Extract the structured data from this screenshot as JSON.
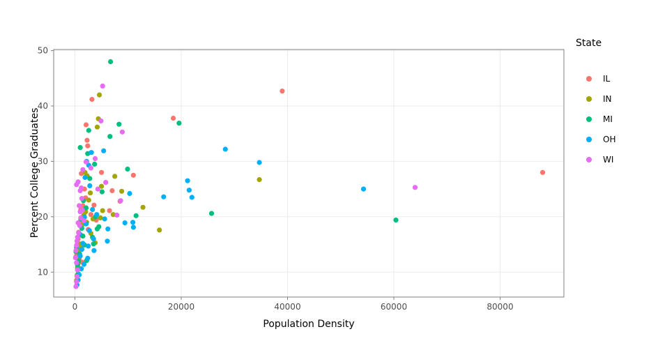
{
  "chart_data": {
    "type": "scatter",
    "title": "",
    "xlabel": "Population Density",
    "ylabel": "Percent College Graduates",
    "xlim": [
      -4000,
      92000
    ],
    "ylim": [
      5.5,
      50.2
    ],
    "x_ticks": [
      0,
      20000,
      40000,
      60000,
      80000
    ],
    "x_tick_labels": [
      "0",
      "20000",
      "40000",
      "60000",
      "80000"
    ],
    "y_ticks": [
      10,
      20,
      30,
      40,
      50
    ],
    "y_tick_labels": [
      "10",
      "20",
      "30",
      "40",
      "50"
    ],
    "grid": true,
    "legend": {
      "title": "State",
      "placement": "right"
    },
    "series": [
      {
        "name": "IL",
        "color": "#F8766D",
        "points": [
          [
            88000,
            28.0
          ],
          [
            39000,
            42.7
          ],
          [
            18500,
            37.8
          ],
          [
            11000,
            27.5
          ],
          [
            8500,
            22.8
          ],
          [
            7000,
            24.7
          ],
          [
            6500,
            21.1
          ],
          [
            5000,
            28.0
          ],
          [
            3200,
            41.2
          ],
          [
            2100,
            36.6
          ],
          [
            2300,
            33.8
          ],
          [
            2400,
            32.8
          ],
          [
            1800,
            25.0
          ],
          [
            1500,
            22.0
          ],
          [
            1200,
            27.8
          ],
          [
            1600,
            20.2
          ],
          [
            900,
            18.5
          ],
          [
            700,
            17.2
          ],
          [
            600,
            16.0
          ],
          [
            500,
            15.1
          ],
          [
            400,
            14.2
          ],
          [
            300,
            13.0
          ],
          [
            800,
            12.4
          ],
          [
            1000,
            19.1
          ],
          [
            1100,
            21.3
          ],
          [
            2500,
            17.7
          ],
          [
            3000,
            20.4
          ],
          [
            4000,
            19.4
          ],
          [
            1400,
            11.8
          ],
          [
            600,
            10.9
          ],
          [
            2000,
            23.4
          ],
          [
            3600,
            22.1
          ]
        ]
      },
      {
        "name": "IN",
        "color": "#A3A500",
        "points": [
          [
            34700,
            26.7
          ],
          [
            15900,
            17.6
          ],
          [
            12800,
            21.7
          ],
          [
            8800,
            24.6
          ],
          [
            7500,
            27.3
          ],
          [
            7200,
            20.4
          ],
          [
            4600,
            42.0
          ],
          [
            4400,
            37.7
          ],
          [
            4200,
            36.2
          ],
          [
            5000,
            25.5
          ],
          [
            2900,
            24.3
          ],
          [
            2300,
            27.4
          ],
          [
            1900,
            28.0
          ],
          [
            2600,
            23.0
          ],
          [
            3400,
            19.6
          ],
          [
            5200,
            21.1
          ],
          [
            2000,
            20.9
          ],
          [
            1400,
            18.6
          ],
          [
            1100,
            16.7
          ],
          [
            900,
            15.1
          ],
          [
            800,
            13.8
          ],
          [
            700,
            12.5
          ],
          [
            600,
            11.6
          ],
          [
            500,
            10.8
          ],
          [
            400,
            9.4
          ],
          [
            300,
            8.5
          ],
          [
            1200,
            14.6
          ],
          [
            3000,
            17.0
          ],
          [
            3800,
            15.3
          ],
          [
            1700,
            20.3
          ],
          [
            2200,
            19.0
          ],
          [
            4800,
            19.8
          ]
        ]
      },
      {
        "name": "MI",
        "color": "#00BF7D",
        "points": [
          [
            60400,
            19.4
          ],
          [
            25700,
            20.6
          ],
          [
            19600,
            36.9
          ],
          [
            11500,
            20.2
          ],
          [
            9900,
            28.6
          ],
          [
            8300,
            36.7
          ],
          [
            6700,
            48.0
          ],
          [
            6600,
            34.5
          ],
          [
            2600,
            35.6
          ],
          [
            2400,
            31.4
          ],
          [
            1000,
            32.5
          ],
          [
            3900,
            20.0
          ],
          [
            4500,
            18.2
          ],
          [
            4200,
            17.8
          ],
          [
            3500,
            15.1
          ],
          [
            2800,
            26.9
          ],
          [
            2200,
            12.1
          ],
          [
            1800,
            14.9
          ],
          [
            1500,
            16.5
          ],
          [
            1300,
            17.9
          ],
          [
            1100,
            19.6
          ],
          [
            900,
            13.2
          ],
          [
            700,
            12.0
          ],
          [
            500,
            11.3
          ],
          [
            300,
            14.5
          ],
          [
            200,
            13.7
          ],
          [
            600,
            9.7
          ],
          [
            1600,
            22.9
          ],
          [
            2100,
            21.6
          ],
          [
            3300,
            16.3
          ],
          [
            5100,
            24.5
          ],
          [
            3700,
            29.5
          ]
        ]
      },
      {
        "name": "OH",
        "color": "#00B0F6",
        "points": [
          [
            54300,
            25.0
          ],
          [
            34700,
            29.8
          ],
          [
            28300,
            32.2
          ],
          [
            22000,
            23.5
          ],
          [
            21500,
            24.8
          ],
          [
            21200,
            26.5
          ],
          [
            16700,
            23.6
          ],
          [
            11000,
            18.1
          ],
          [
            10900,
            19.0
          ],
          [
            10300,
            24.2
          ],
          [
            9400,
            18.9
          ],
          [
            6200,
            17.8
          ],
          [
            6100,
            15.6
          ],
          [
            5600,
            19.6
          ],
          [
            5400,
            31.9
          ],
          [
            3100,
            31.6
          ],
          [
            2600,
            29.3
          ],
          [
            2200,
            30.0
          ],
          [
            1900,
            27.1
          ],
          [
            2800,
            25.6
          ],
          [
            3300,
            21.3
          ],
          [
            3600,
            13.9
          ],
          [
            2400,
            12.5
          ],
          [
            1700,
            11.4
          ],
          [
            1200,
            10.6
          ],
          [
            800,
            9.5
          ],
          [
            600,
            8.6
          ],
          [
            400,
            7.7
          ],
          [
            900,
            16.9
          ],
          [
            1500,
            15.2
          ],
          [
            2100,
            18.7
          ],
          [
            2700,
            17.5
          ],
          [
            3500,
            16.0
          ],
          [
            4100,
            20.4
          ],
          [
            1300,
            14.1
          ],
          [
            1000,
            12.9
          ],
          [
            2500,
            14.7
          ],
          [
            1800,
            19.9
          ]
        ]
      },
      {
        "name": "WI",
        "color": "#E76BF3",
        "points": [
          [
            64000,
            25.3
          ],
          [
            8900,
            35.3
          ],
          [
            8600,
            22.9
          ],
          [
            7900,
            20.3
          ],
          [
            5200,
            43.6
          ],
          [
            4900,
            37.3
          ],
          [
            5800,
            26.2
          ],
          [
            3800,
            30.5
          ],
          [
            3000,
            28.8
          ],
          [
            2100,
            29.9
          ],
          [
            1500,
            28.5
          ],
          [
            1200,
            25.2
          ],
          [
            1000,
            24.7
          ],
          [
            600,
            26.3
          ],
          [
            300,
            25.8
          ],
          [
            800,
            22.0
          ],
          [
            1400,
            21.2
          ],
          [
            1100,
            19.8
          ],
          [
            900,
            18.4
          ],
          [
            700,
            17.1
          ],
          [
            500,
            16.3
          ],
          [
            400,
            15.6
          ],
          [
            300,
            14.8
          ],
          [
            200,
            13.9
          ],
          [
            100,
            12.6
          ],
          [
            300,
            11.7
          ],
          [
            500,
            10.4
          ],
          [
            400,
            9.2
          ],
          [
            300,
            8.3
          ],
          [
            200,
            7.4
          ],
          [
            1000,
            20.9
          ],
          [
            1300,
            23.3
          ],
          [
            4300,
            25.0
          ],
          [
            600,
            18.9
          ],
          [
            1700,
            19.3
          ]
        ]
      }
    ]
  }
}
